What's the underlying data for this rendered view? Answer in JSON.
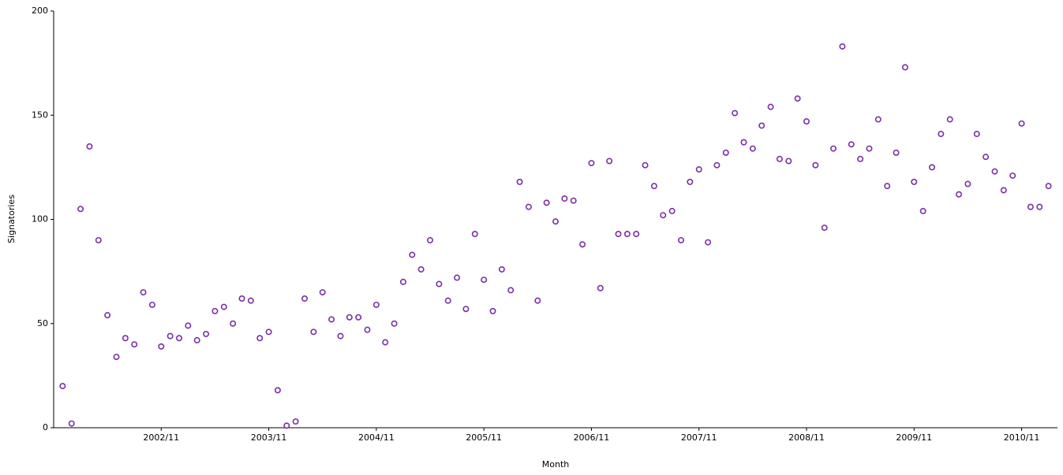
{
  "chart_data": {
    "type": "scatter",
    "x_label": "Month",
    "y_label": "Signatories",
    "color": "#7b2fa6",
    "x": [
      "2001/12",
      "2002/01",
      "2002/02",
      "2002/03",
      "2002/04",
      "2002/05",
      "2002/06",
      "2002/07",
      "2002/08",
      "2002/09",
      "2002/10",
      "2002/11",
      "2002/12",
      "2003/01",
      "2003/02",
      "2003/03",
      "2003/04",
      "2003/05",
      "2003/06",
      "2003/07",
      "2003/08",
      "2003/09",
      "2003/10",
      "2003/11",
      "2003/12",
      "2004/01",
      "2004/02",
      "2004/03",
      "2004/04",
      "2004/05",
      "2004/06",
      "2004/07",
      "2004/08",
      "2004/09",
      "2004/10",
      "2004/11",
      "2004/12",
      "2005/01",
      "2005/02",
      "2005/03",
      "2005/04",
      "2005/05",
      "2005/06",
      "2005/07",
      "2005/08",
      "2005/09",
      "2005/10",
      "2005/11",
      "2005/12",
      "2006/01",
      "2006/02",
      "2006/03",
      "2006/04",
      "2006/05",
      "2006/06",
      "2006/07",
      "2006/08",
      "2006/09",
      "2006/10",
      "2006/11",
      "2006/12",
      "2007/01",
      "2007/02",
      "2007/03",
      "2007/04",
      "2007/05",
      "2007/06",
      "2007/07",
      "2007/08",
      "2007/09",
      "2007/10",
      "2007/11",
      "2007/12",
      "2008/01",
      "2008/02",
      "2008/03",
      "2008/04",
      "2008/05",
      "2008/06",
      "2008/07",
      "2008/08",
      "2008/09",
      "2008/10",
      "2008/11",
      "2008/12",
      "2009/01",
      "2009/02",
      "2009/03",
      "2009/04",
      "2009/05",
      "2009/06",
      "2009/07",
      "2009/08",
      "2009/09",
      "2009/10",
      "2009/11",
      "2009/12",
      "2010/01",
      "2010/02",
      "2010/03",
      "2010/04",
      "2010/05",
      "2010/06",
      "2010/07",
      "2010/08",
      "2010/09",
      "2010/10",
      "2010/11",
      "2010/12",
      "2011/01",
      "2011/02"
    ],
    "values": [
      20,
      2,
      105,
      135,
      90,
      54,
      34,
      43,
      40,
      65,
      59,
      39,
      44,
      43,
      49,
      42,
      45,
      56,
      58,
      50,
      62,
      61,
      43,
      46,
      18,
      1,
      3,
      62,
      46,
      65,
      52,
      44,
      53,
      53,
      47,
      59,
      41,
      50,
      70,
      83,
      76,
      90,
      69,
      61,
      72,
      57,
      93,
      71,
      56,
      76,
      66,
      118,
      106,
      61,
      108,
      99,
      110,
      109,
      88,
      127,
      67,
      128,
      93,
      93,
      93,
      126,
      116,
      102,
      104,
      90,
      118,
      124,
      89,
      126,
      132,
      151,
      137,
      134,
      145,
      154,
      129,
      128,
      158,
      147,
      126,
      96,
      134,
      183,
      136,
      129,
      134,
      148,
      116,
      132,
      173,
      118,
      104,
      125,
      141,
      148,
      112,
      117,
      141,
      130,
      123,
      114,
      121,
      146,
      106,
      106,
      116
    ],
    "xlim": [
      "2001/11",
      "2011/03"
    ],
    "xticks": [
      "2002/11",
      "2003/11",
      "2004/11",
      "2005/11",
      "2006/11",
      "2007/11",
      "2008/11",
      "2009/11",
      "2010/11"
    ],
    "ylim": [
      0,
      200
    ],
    "yticks": [
      0,
      50,
      100,
      150,
      200
    ],
    "grid": false
  }
}
